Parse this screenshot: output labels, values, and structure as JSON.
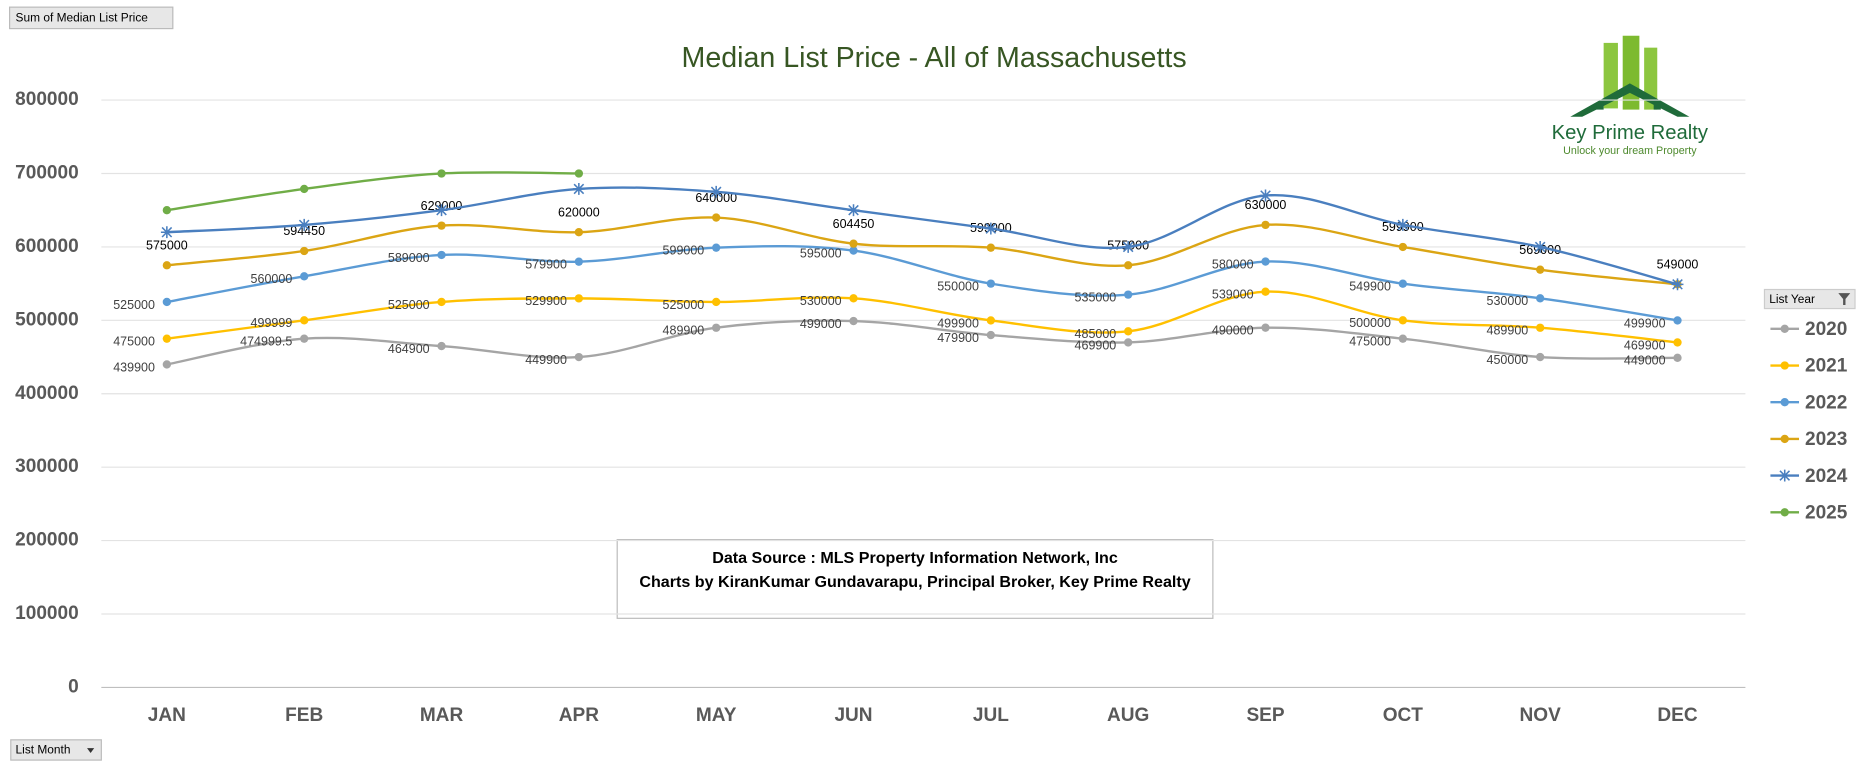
{
  "chart_data": {
    "type": "line",
    "title": "Median List Price - All of Massachusetts",
    "categories": [
      "JAN",
      "FEB",
      "MAR",
      "APR",
      "MAY",
      "JUN",
      "JUL",
      "AUG",
      "SEP",
      "OCT",
      "NOV",
      "DEC"
    ],
    "ylim": [
      0,
      800000
    ],
    "yticks": [
      0,
      100000,
      200000,
      300000,
      400000,
      500000,
      600000,
      700000,
      800000
    ],
    "grid": true,
    "legend": "right",
    "legend_title": "List Year",
    "series": [
      {
        "name": "2020",
        "color": "#a5a5a5",
        "marker": "circle",
        "data_labels": true,
        "values": [
          439900,
          474999.5,
          464900,
          449900,
          489900,
          499000,
          479900,
          469900,
          490000,
          475000,
          450000,
          449000
        ]
      },
      {
        "name": "2021",
        "color": "#ffc000",
        "marker": "circle",
        "data_labels": true,
        "values": [
          475000,
          499999,
          525000,
          529900,
          525000,
          530000,
          499900,
          485000,
          539000,
          500000,
          489900,
          469900
        ]
      },
      {
        "name": "2022",
        "color": "#5b9bd5",
        "marker": "circle",
        "data_labels": true,
        "values": [
          525000,
          560000,
          589000,
          579900,
          599000,
          595000,
          550000,
          535000,
          580000,
          549900,
          530000,
          499900
        ]
      },
      {
        "name": "2023",
        "color": "#dba514",
        "marker": "circle",
        "data_labels": true,
        "values": [
          575000,
          594450,
          629000,
          620000,
          640000,
          604450,
          599000,
          575000,
          630000,
          599900,
          569000,
          549000
        ]
      },
      {
        "name": "2024",
        "color": "#4a7fbf",
        "marker": "star",
        "data_labels": false,
        "values": [
          620000,
          630000,
          650000,
          679000,
          675000,
          650000,
          625000,
          600000,
          670000,
          630000,
          600000,
          549000
        ]
      },
      {
        "name": "2025",
        "color": "#70ad47",
        "marker": "circle",
        "data_labels": false,
        "values": [
          650000,
          679000,
          700000,
          700000,
          null,
          null,
          null,
          null,
          null,
          null,
          null,
          null
        ]
      }
    ]
  },
  "value_field": "Sum of Median List Price",
  "axis_field": "List Month",
  "note": [
    "Data Source : MLS Property Information Network, Inc",
    "Charts by KiranKumar Gundavarapu, Principal Broker, Key Prime Realty"
  ],
  "logo": {
    "name": "Key Prime Realty",
    "tagline": "Unlock your dream Property"
  }
}
